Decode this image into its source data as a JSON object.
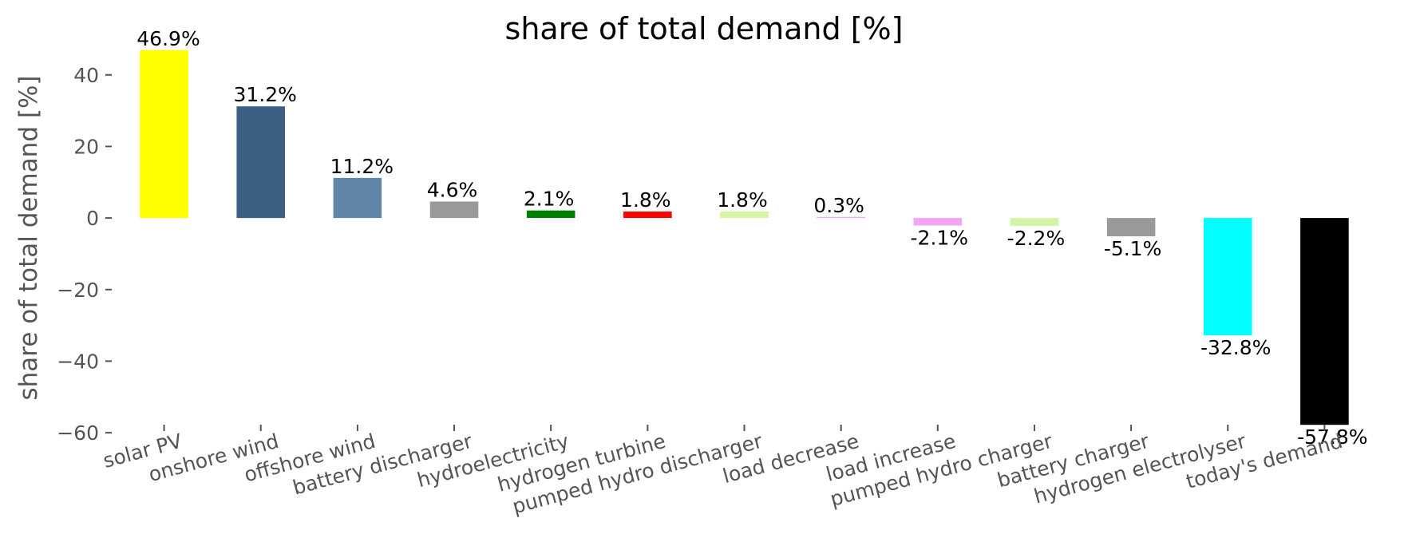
{
  "chart_data": {
    "type": "bar",
    "title": "share of total demand [%]",
    "xlabel": "",
    "ylabel": "share of total demand [%]",
    "ylim": [
      -64,
      52
    ],
    "yticks": [
      40,
      20,
      0,
      -20,
      -40,
      -60
    ],
    "ytick_labels": [
      "40",
      "20",
      "0",
      "−20",
      "−40",
      "−60"
    ],
    "grid": false,
    "categories": [
      "solar PV",
      "onshore wind",
      "offshore wind",
      "battery discharger",
      "hydroelectricity",
      "hydrogen turbine",
      "pumped hydro discharger",
      "load decrease",
      "load increase",
      "pumped hydro charger",
      "battery charger",
      "hydrogen electrolyser",
      "today's demand"
    ],
    "values": [
      46.9,
      31.2,
      11.2,
      4.6,
      2.1,
      1.8,
      1.8,
      0.3,
      -2.1,
      -2.2,
      -5.1,
      -32.8,
      -57.8
    ],
    "data_labels": [
      "46.9%",
      "31.2%",
      "11.2%",
      "4.6%",
      "2.1%",
      "1.8%",
      "1.8%",
      "0.3%",
      "-2.1%",
      "-2.2%",
      "-5.1%",
      "-32.8%",
      "-57.8%"
    ],
    "colors": [
      "#ffff00",
      "#3b5f82",
      "#5f85a8",
      "#999999",
      "#008000",
      "#ff0000",
      "#d4f5a4",
      "#f5a3f5",
      "#f5a3f5",
      "#d4f5a4",
      "#999999",
      "#00ffff",
      "#000000"
    ]
  }
}
